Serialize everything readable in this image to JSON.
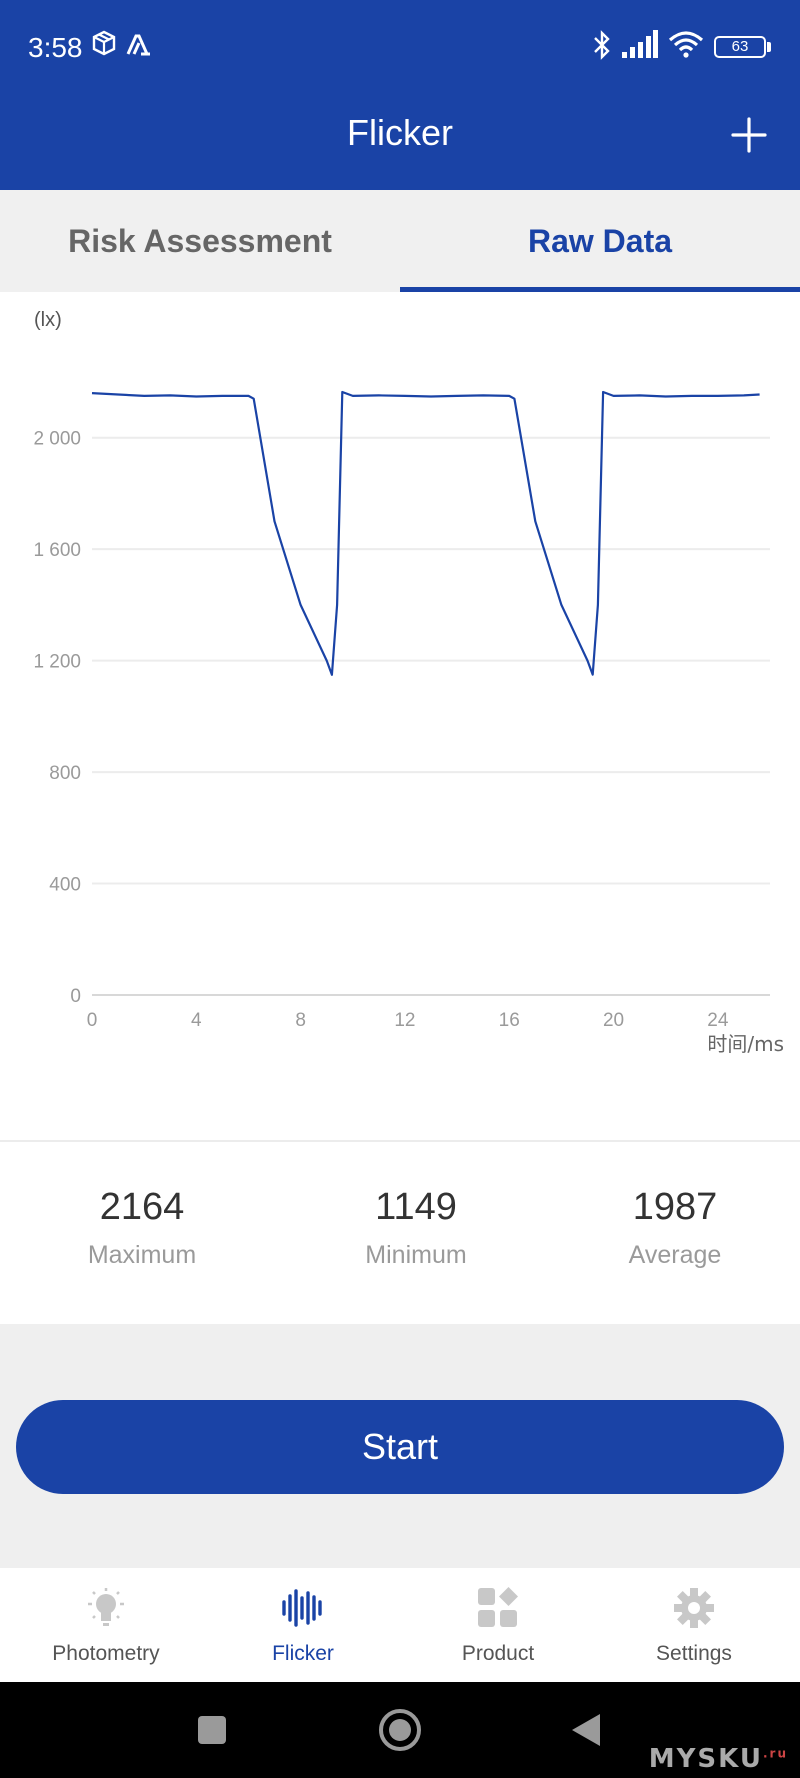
{
  "status_bar": {
    "time": "3:58",
    "battery": "63",
    "icons": [
      "box-icon",
      "app-icon",
      "bluetooth-icon",
      "signal-icon",
      "wifi-icon",
      "battery-icon"
    ]
  },
  "header": {
    "title": "Flicker",
    "action_icon": "plus-icon"
  },
  "tabs": [
    {
      "label": "Risk Assessment",
      "active": false
    },
    {
      "label": "Raw Data",
      "active": true
    }
  ],
  "chart_data": {
    "type": "line",
    "ylabel": "(lx)",
    "xlabel": "时间/ms",
    "xlim": [
      0,
      26
    ],
    "ylim": [
      0,
      2200
    ],
    "x_ticks": [
      "0",
      "4",
      "8",
      "12",
      "16",
      "20",
      "24"
    ],
    "x_tick_values": [
      0,
      4,
      8,
      12,
      16,
      20,
      24
    ],
    "y_ticks": [
      "0",
      "400",
      "800",
      "1 200",
      "1 600",
      "2 000"
    ],
    "y_tick_values": [
      0,
      400,
      800,
      1200,
      1600,
      2000
    ],
    "grid": true,
    "color": "#1a43a6",
    "series": [
      {
        "x": [
          0,
          1,
          2,
          3,
          4,
          5,
          6,
          6.2,
          7,
          8,
          9,
          9.2,
          9.4,
          9.6,
          10,
          11,
          12,
          13,
          14,
          15,
          16,
          16.2,
          17,
          18,
          19,
          19.2,
          19.4,
          19.6,
          20,
          21,
          22,
          23,
          24,
          25,
          25.6
        ],
        "y": [
          2160,
          2155,
          2150,
          2152,
          2148,
          2150,
          2150,
          2140,
          1700,
          1400,
          1200,
          1149,
          1400,
          2164,
          2150,
          2152,
          2150,
          2148,
          2150,
          2152,
          2150,
          2140,
          1700,
          1400,
          1200,
          1150,
          1400,
          2164,
          2150,
          2152,
          2148,
          2150,
          2150,
          2152,
          2155
        ]
      }
    ]
  },
  "stats": [
    {
      "value": "2164",
      "label": "Maximum"
    },
    {
      "value": "1149",
      "label": "Minimum"
    },
    {
      "value": "1987",
      "label": "Average"
    }
  ],
  "start_button": {
    "label": "Start"
  },
  "bottom_nav": [
    {
      "label": "Photometry",
      "icon": "bulb-icon",
      "active": false
    },
    {
      "label": "Flicker",
      "icon": "waveform-icon",
      "active": true
    },
    {
      "label": "Product",
      "icon": "grid-icon",
      "active": false
    },
    {
      "label": "Settings",
      "icon": "gear-icon",
      "active": false
    }
  ],
  "system_nav": {
    "icons": [
      "square-icon",
      "circle-icon",
      "back-triangle-icon"
    ]
  },
  "watermark": {
    "text": "MYSKU",
    "suffix": ".ru"
  }
}
